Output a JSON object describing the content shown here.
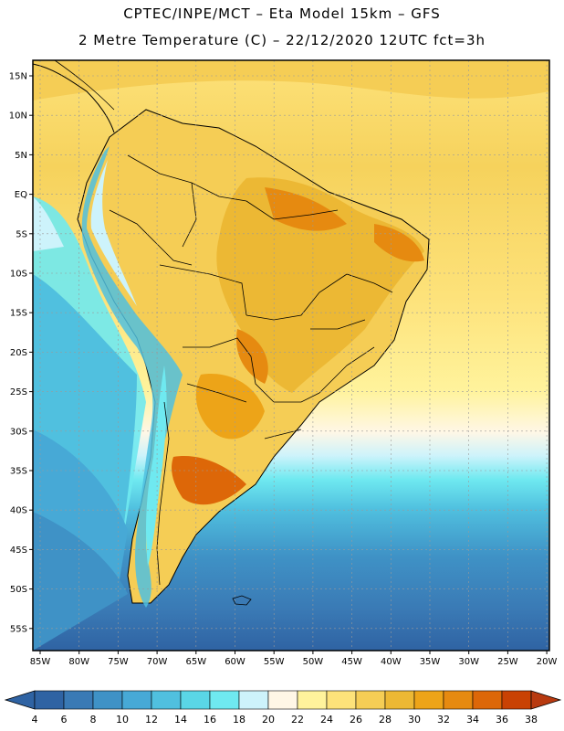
{
  "title": {
    "line1": "CPTEC/INPE/MCT –  Eta Model 15km – GFS",
    "line2": "2 Metre Temperature (C) – 22/12/2020 12UTC fct=3h"
  },
  "map": {
    "lat_labels": [
      "15N",
      "10N",
      "5N",
      "EQ",
      "5S",
      "10S",
      "15S",
      "20S",
      "25S",
      "30S",
      "35S",
      "40S",
      "45S",
      "50S",
      "55S"
    ],
    "lon_labels": [
      "85W",
      "80W",
      "75W",
      "70W",
      "65W",
      "60W",
      "55W",
      "50W",
      "45W",
      "40W",
      "35W",
      "30W",
      "25W",
      "20W"
    ],
    "colorbar": {
      "labels": [
        "4",
        "6",
        "8",
        "10",
        "12",
        "14",
        "16",
        "18",
        "20",
        "22",
        "24",
        "26",
        "28",
        "30",
        "32",
        "34",
        "36",
        "38"
      ],
      "colors": [
        "#2f63a3",
        "#3a7ab5",
        "#3f92c6",
        "#47a9d6",
        "#50c0df",
        "#5ad6e6",
        "#6fe9f0",
        "#cdf3fb",
        "#fff7e6",
        "#fff39c",
        "#fde27a",
        "#f5cd55",
        "#ecb834",
        "#eda418",
        "#e68a10",
        "#dd6708",
        "#c94203"
      ],
      "low_color": "#2f63a3",
      "high_color": "#b83a10"
    }
  }
}
